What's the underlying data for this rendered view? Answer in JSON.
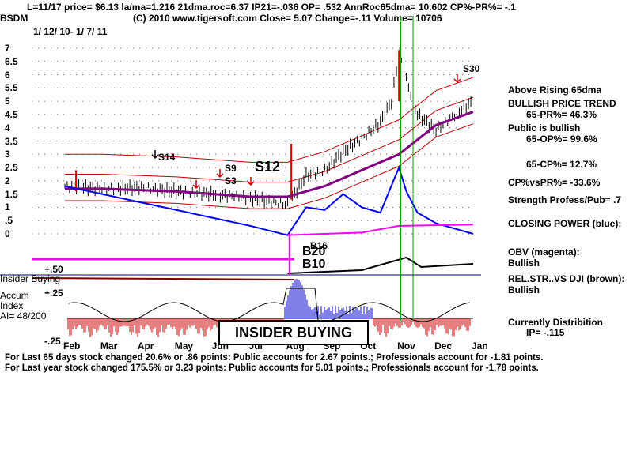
{
  "header": {
    "line1": "L=11/17  price= $6.13  la/ma=1.216 21dma.roc=6.37 IP21=-.036 OP= .532 AnnRoc65dma= 10.602 CP%-PR%= -.1",
    "symbol": "BSDM",
    "line2": "(C) 2010 www.tigersoft.com    Close=  5.07  Change=-.11 Volume= 10706",
    "date_range": "1/ 12/ 10-  1/ 7/ 11"
  },
  "chart_data": {
    "type": "line",
    "y_ticks": [
      "7",
      "6.5",
      "6",
      "5.5",
      "5",
      "4.5",
      "4",
      "3.5",
      "3",
      "2.5",
      "2",
      "1.5",
      "1",
      ".5",
      "0"
    ],
    "x_ticks": [
      "Feb",
      "Mar",
      "Apr",
      "May",
      "Jun",
      "Jul",
      "Aug",
      "Sep",
      "Oct",
      "Nov",
      "Dec",
      "Jan"
    ],
    "ylim": [
      0,
      7
    ],
    "grid": true,
    "signals": [
      "S14",
      "S9",
      "S3",
      "S12",
      "S30",
      "B16",
      "B20",
      "B10"
    ],
    "accum_labels": [
      "+.50",
      "+.25",
      "-.25"
    ],
    "price_series": {
      "x": [
        0,
        1,
        2,
        3,
        4,
        5,
        6,
        6.5,
        7,
        7.5,
        8,
        8.5,
        8.8,
        9,
        9.2,
        9.5,
        10,
        10.5,
        11
      ],
      "values": [
        1.8,
        1.7,
        1.75,
        1.6,
        1.5,
        1.35,
        1.1,
        2.2,
        2.4,
        3.1,
        3.6,
        4.2,
        5.0,
        6.8,
        5.8,
        4.5,
        3.9,
        4.5,
        5.0
      ]
    },
    "ma65_series": {
      "x": [
        0,
        1,
        2,
        3,
        4,
        5,
        6,
        7,
        8,
        9,
        10,
        11
      ],
      "values": [
        1.7,
        1.7,
        1.65,
        1.6,
        1.5,
        1.4,
        1.4,
        1.8,
        2.4,
        3.0,
        4.1,
        4.6
      ]
    },
    "closing_power": {
      "x": [
        0,
        1,
        2,
        3,
        4,
        5,
        6,
        6.5,
        7,
        7.5,
        8,
        8.5,
        9,
        9.2,
        9.5,
        10,
        10.5,
        11
      ],
      "values": [
        1.8,
        1.5,
        1.2,
        0.9,
        0.6,
        0.3,
        -0.05,
        1.0,
        0.9,
        1.5,
        1.0,
        0.8,
        2.5,
        1.6,
        0.8,
        0.4,
        0.2,
        0.0
      ]
    }
  },
  "labels": {
    "s14": "S14",
    "s9": "S9",
    "s3": "S3",
    "s12": "S12",
    "s30": "S30",
    "b16": "B16",
    "b20": "B20",
    "b10": "B10",
    "insider_side": "Insider Buying",
    "accum": "Accum",
    "index": "Index",
    "ai": "AI= 48/200",
    "insider_box": "INSIDER BUYING",
    "acc_plus50": "+.50",
    "acc_plus25": "+.25",
    "acc_minus25": "-.25"
  },
  "right_panel": {
    "above_rising": "Above Rising 65dma",
    "bullish_price": "BULLISH PRICE TREND",
    "pr65": "65-PR%= 46.3%",
    "public_bullish": "Public is bullish",
    "op65": "65-OP%= 99.6%",
    "cp65": "65-CP%= 12.7%",
    "cpvspr": "CP%vsPR%= -33.6%",
    "strength": "Strength Profess/Pub= .7",
    "closing_power": "CLOSING POWER (blue):",
    "obv": "OBV (magenta):",
    "obv_val": "Bullish",
    "relstr": "REL.STR..VS DJI (brown):",
    "relstr_val": "Bullish",
    "currently": "Currently Distribition",
    "ip": "IP= -.115"
  },
  "footer": {
    "line1": "For Last 65 days stock changed  20.6% or  .86 points:  Public accounts for  2.67 points.;  Professionals account for -1.81 points.",
    "line2": "For Last year stock changed  175.5% or  3.23 points:  Public accounts for  5.01 points.;  Professionals account for -1.78 points."
  },
  "colors": {
    "price_bars": "#000000",
    "bands": "#c00000",
    "ma65": "#800080",
    "closing_power": "#0000ff",
    "obv": "#ff00ff",
    "accum_pos": "#0000cc",
    "accum_neg": "#cc0000",
    "signal_lines": "#009900"
  }
}
